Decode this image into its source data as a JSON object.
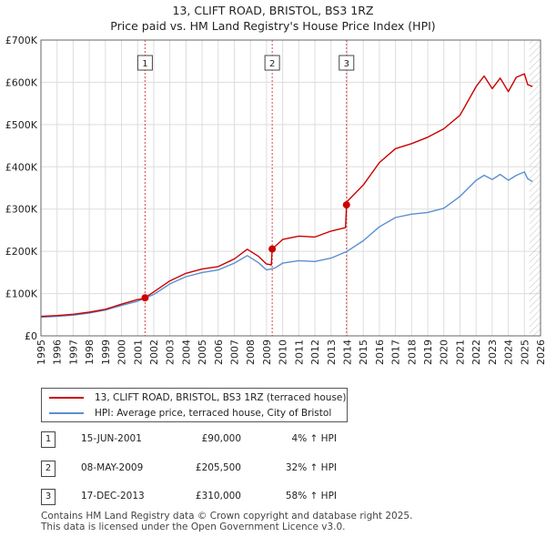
{
  "title_line1": "13, CLIFT ROAD, BRISTOL, BS3 1RZ",
  "title_line2": "Price paid vs. HM Land Registry's House Price Index (HPI)",
  "colors": {
    "property": "#cc0000",
    "hpi": "#5b8fd0",
    "marker": "#cc0000",
    "vline": "#dd4444",
    "grid": "#dddddd",
    "hatch": "#999999"
  },
  "legend": {
    "property_label": "13, CLIFT ROAD, BRISTOL, BS3 1RZ (terraced house)",
    "hpi_label": "HPI: Average price, terraced house, City of Bristol"
  },
  "transactions": [
    {
      "num": "1",
      "date": "15-JUN-2001",
      "price": "£90,000",
      "hpi_change": "4% ↑ HPI"
    },
    {
      "num": "2",
      "date": "08-MAY-2009",
      "price": "£205,500",
      "hpi_change": "32% ↑ HPI"
    },
    {
      "num": "3",
      "date": "17-DEC-2013",
      "price": "£310,000",
      "hpi_change": "58% ↑ HPI"
    }
  ],
  "footer_line1": "Contains HM Land Registry data © Crown copyright and database right 2025.",
  "footer_line2": "This data is licensed under the Open Government Licence v3.0.",
  "chart_data": {
    "type": "line",
    "title": "Price paid vs. HM Land Registry's House Price Index (HPI)",
    "xlabel": "",
    "ylabel": "",
    "xlim": [
      1995,
      2026
    ],
    "ylim": [
      0,
      700000
    ],
    "y_ticks": [
      0,
      100000,
      200000,
      300000,
      400000,
      500000,
      600000,
      700000
    ],
    "y_tick_labels": [
      "£0",
      "£100K",
      "£200K",
      "£300K",
      "£400K",
      "£500K",
      "£600K",
      "£700K"
    ],
    "x_ticks": [
      1995,
      1996,
      1997,
      1998,
      1999,
      2000,
      2001,
      2002,
      2003,
      2004,
      2005,
      2006,
      2007,
      2008,
      2009,
      2010,
      2011,
      2012,
      2013,
      2014,
      2015,
      2016,
      2017,
      2018,
      2019,
      2020,
      2021,
      2022,
      2023,
      2024,
      2025,
      2026
    ],
    "x_tick_labels": [
      "1995",
      "1996",
      "1997",
      "1998",
      "1999",
      "2000",
      "2001",
      "2002",
      "2003",
      "2004",
      "2005",
      "2006",
      "2007",
      "2008",
      "2009",
      "2010",
      "2011",
      "2012",
      "2013",
      "2014",
      "2015",
      "2016",
      "2017",
      "2018",
      "2019",
      "2020",
      "2021",
      "2022",
      "2023",
      "2024",
      "2025",
      "2026"
    ],
    "grid": true,
    "forecast_hatch_from": 2025.3,
    "series": [
      {
        "name": "13, CLIFT ROAD, BRISTOL, BS3 1RZ (terraced house)",
        "color": "#cc0000",
        "x": [
          1995,
          1996,
          1997,
          1998,
          1999,
          2000,
          2001,
          2001.45,
          2001.46,
          2002,
          2003,
          2004,
          2005,
          2006,
          2007,
          2007.8,
          2008.5,
          2009.0,
          2009.3,
          2009.35,
          2010,
          2011,
          2012,
          2013,
          2013.9,
          2013.96,
          2014,
          2015,
          2016,
          2017,
          2018,
          2019,
          2020,
          2021,
          2022,
          2022.5,
          2023,
          2023.5,
          2024,
          2024.5,
          2025,
          2025.2,
          2025.5
        ],
        "values": [
          46000,
          48000,
          51000,
          56000,
          63000,
          75000,
          86000,
          88000,
          90000,
          104000,
          130000,
          148000,
          158000,
          164000,
          182000,
          205000,
          188000,
          170000,
          168000,
          205500,
          228000,
          236000,
          234000,
          248000,
          256000,
          310000,
          318000,
          357000,
          410000,
          443000,
          455000,
          470000,
          490000,
          522000,
          590000,
          615000,
          585000,
          610000,
          578000,
          612000,
          620000,
          595000,
          590000
        ]
      },
      {
        "name": "HPI: Average price, terraced house, City of Bristol",
        "color": "#5b8fd0",
        "x": [
          1995,
          1996,
          1997,
          1998,
          1999,
          2000,
          2001,
          2002,
          2003,
          2004,
          2005,
          2006,
          2007,
          2007.8,
          2008.5,
          2009.0,
          2009.5,
          2010,
          2011,
          2012,
          2013,
          2014,
          2015,
          2016,
          2017,
          2018,
          2019,
          2020,
          2021,
          2022,
          2022.5,
          2023,
          2023.5,
          2024,
          2024.5,
          2025,
          2025.2,
          2025.5
        ],
        "values": [
          44000,
          46000,
          49000,
          54000,
          61000,
          72000,
          82000,
          98000,
          123000,
          140000,
          150000,
          156000,
          172000,
          190000,
          173000,
          156000,
          160000,
          172000,
          178000,
          176000,
          184000,
          200000,
          225000,
          258000,
          280000,
          288000,
          292000,
          302000,
          330000,
          368000,
          380000,
          370000,
          382000,
          368000,
          380000,
          388000,
          372000,
          365000
        ]
      }
    ],
    "sale_markers": [
      {
        "label": "1",
        "x": 2001.46,
        "value": 90000
      },
      {
        "label": "2",
        "x": 2009.35,
        "value": 205500
      },
      {
        "label": "3",
        "x": 2013.96,
        "value": 310000
      }
    ]
  }
}
